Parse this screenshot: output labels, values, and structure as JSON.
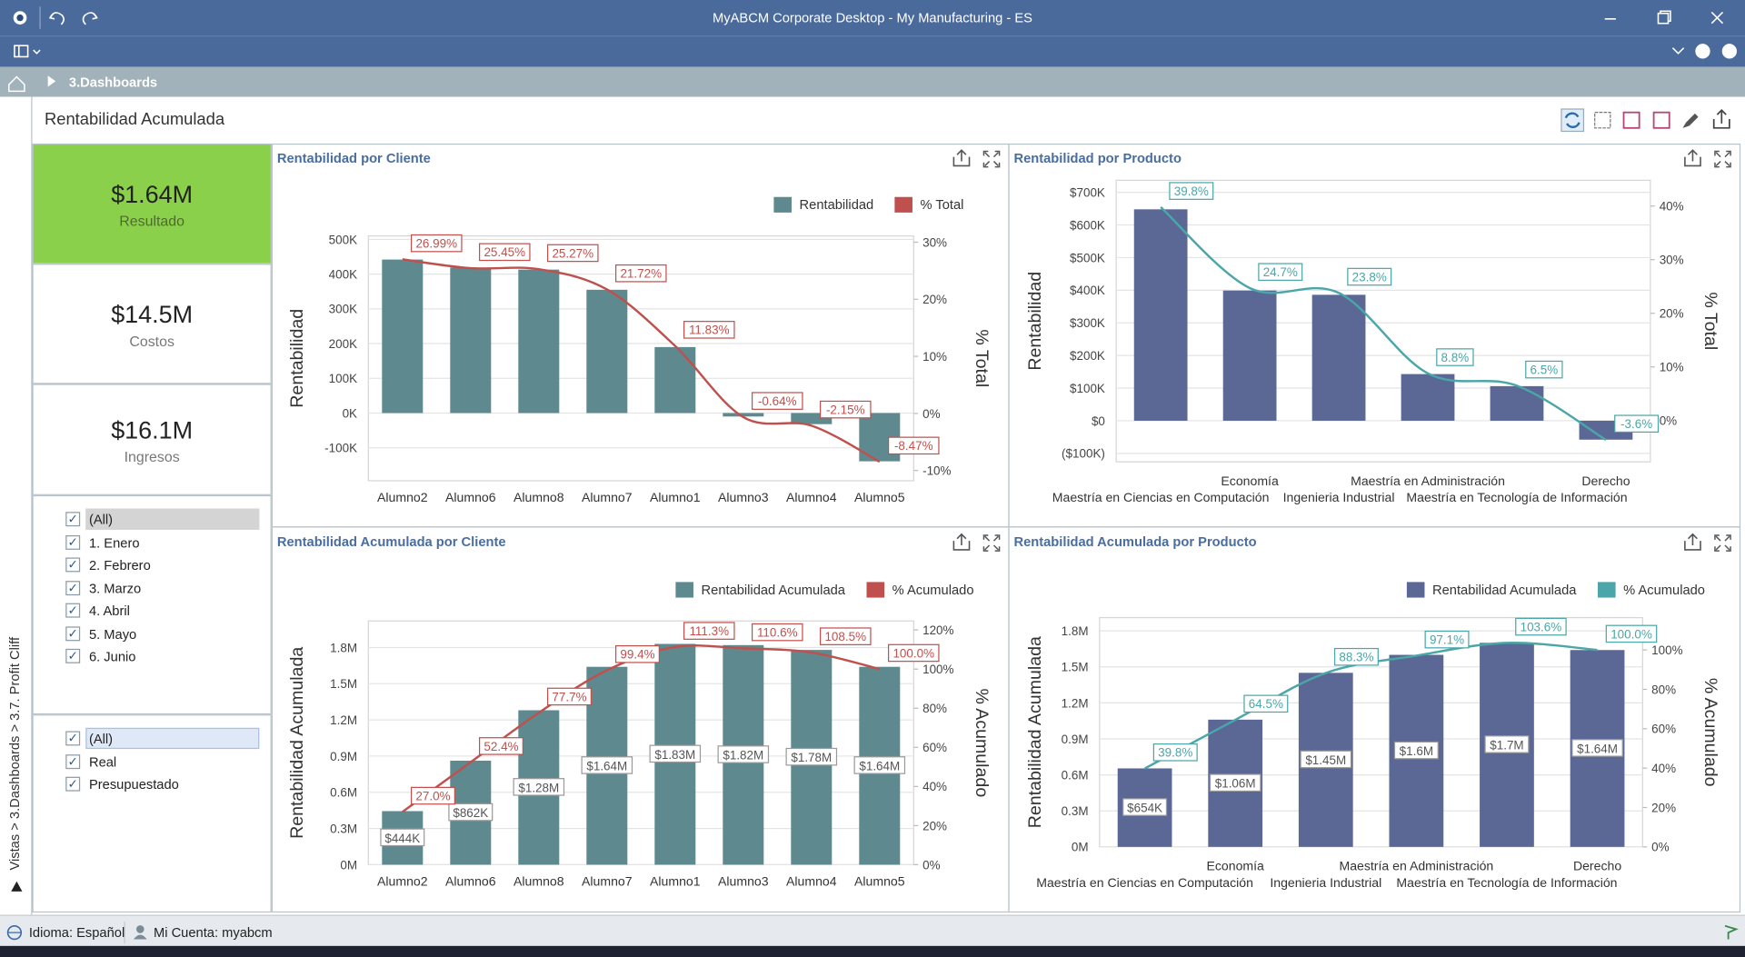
{
  "window": {
    "title": "MyABCM Corporate Desktop - My Manufacturing - ES"
  },
  "breadcrumb": "3.Dashboards",
  "side_path": "Vistas > 3.Dashboards > 3.7. Profit Cliff",
  "dashboard_title": "Rentabilidad Acumulada",
  "kpis": [
    {
      "value": "$1.64M",
      "label": "Resultado"
    },
    {
      "value": "$14.5M",
      "label": "Costos"
    },
    {
      "value": "$16.1M",
      "label": "Ingresos"
    }
  ],
  "filters": [
    [
      "(All)",
      "1. Enero",
      "2. Febrero",
      "3. Marzo",
      "4. Abril",
      "5. Mayo",
      "6. Junio"
    ],
    [
      "(All)",
      "Real",
      "Presupuestado"
    ]
  ],
  "status": {
    "language": "Idioma: Español",
    "account": "Mi Cuenta: myabcm"
  },
  "chart_data": [
    {
      "type": "bar",
      "title": "Rentabilidad por Cliente",
      "categories": [
        "Alumno2",
        "Alumno6",
        "Alumno8",
        "Alumno7",
        "Alumno1",
        "Alumno3",
        "Alumno4",
        "Alumno5"
      ],
      "series": [
        {
          "name": "Rentabilidad",
          "type": "bar",
          "color": "#5e8a8f",
          "values": [
            442000,
            419000,
            413000,
            355000,
            190000,
            -10000,
            -32000,
            -139000
          ]
        },
        {
          "name": "% Total",
          "type": "line",
          "axis": "y2",
          "color": "#c0504d",
          "values": [
            26.99,
            25.45,
            25.27,
            21.72,
            11.83,
            -0.64,
            -2.15,
            -8.47
          ],
          "value_labels": [
            "26.99%",
            "25.45%",
            "25.27%",
            "21.72%",
            "11.83%",
            "-0.64%",
            "-2.15%",
            "-8.47%"
          ]
        }
      ],
      "ylabel": "Rentabilidad",
      "y2label": "% Total",
      "ylim": [
        -195000,
        510000
      ],
      "yticks": [
        {
          "value": -100000,
          "label": "-100K"
        },
        {
          "value": 0,
          "label": "0K"
        },
        {
          "value": 100000,
          "label": "100K"
        },
        {
          "value": 200000,
          "label": "200K"
        },
        {
          "value": 300000,
          "label": "300K"
        },
        {
          "value": 400000,
          "label": "400K"
        },
        {
          "value": 500000,
          "label": "500K"
        }
      ],
      "y2lim": [
        -11.8,
        31.1
      ],
      "y2ticks": [
        {
          "value": -10,
          "label": "-10%"
        },
        {
          "value": 0,
          "label": "0%"
        },
        {
          "value": 10,
          "label": "10%"
        },
        {
          "value": 20,
          "label": "20%"
        },
        {
          "value": 30,
          "label": "30%"
        }
      ],
      "grid": true,
      "legend": "top-right"
    },
    {
      "type": "bar",
      "title": "Rentabilidad por Producto",
      "categories": [
        "Maestría en Ciencias en Computación",
        "Economía",
        "Ingenieria Industrial",
        "Maestría en Administración",
        "Maestría en Tecnología de Información",
        "Derecho"
      ],
      "series": [
        {
          "type": "bar",
          "color": "#5b6794",
          "values": [
            648000,
            399000,
            386000,
            143000,
            106000,
            -58000
          ]
        },
        {
          "type": "line",
          "axis": "y2",
          "color": "#4aa6a8",
          "values": [
            39.8,
            24.7,
            23.8,
            8.8,
            6.5,
            -3.6
          ],
          "value_labels": [
            "39.8%",
            "24.7%",
            "23.8%",
            "8.8%",
            "6.5%",
            "-3.6%"
          ]
        }
      ],
      "ylabel": "Rentabilidad",
      "y2label": "% Total",
      "ylim": [
        -126000,
        737000
      ],
      "yticks": [
        {
          "value": -100000,
          "label": "($100K)"
        },
        {
          "value": 0,
          "label": "$0"
        },
        {
          "value": 100000,
          "label": "$100K"
        },
        {
          "value": 200000,
          "label": "$200K"
        },
        {
          "value": 300000,
          "label": "$300K"
        },
        {
          "value": 400000,
          "label": "$400K"
        },
        {
          "value": 500000,
          "label": "$500K"
        },
        {
          "value": 600000,
          "label": "$600K"
        },
        {
          "value": 700000,
          "label": "$700K"
        }
      ],
      "y2lim": [
        -7.7,
        44.8
      ],
      "y2ticks": [
        {
          "value": 0,
          "label": "0%"
        },
        {
          "value": 10,
          "label": "10%"
        },
        {
          "value": 20,
          "label": "20%"
        },
        {
          "value": 30,
          "label": "30%"
        },
        {
          "value": 40,
          "label": "40%"
        }
      ],
      "grid": true
    },
    {
      "type": "bar",
      "title": "Rentabilidad Acumulada por Cliente",
      "categories": [
        "Alumno2",
        "Alumno6",
        "Alumno8",
        "Alumno7",
        "Alumno1",
        "Alumno3",
        "Alumno4",
        "Alumno5"
      ],
      "series": [
        {
          "name": "Rentabilidad Acumulada",
          "type": "bar",
          "color": "#5e8a8f",
          "values": [
            444000,
            862000,
            1280000,
            1640000,
            1830000,
            1820000,
            1780000,
            1640000
          ],
          "value_labels": [
            "$444K",
            "$862K",
            "$1.28M",
            "$1.64M",
            "$1.83M",
            "$1.82M",
            "$1.78M",
            "$1.64M"
          ]
        },
        {
          "name": "% Acumulado",
          "type": "line",
          "axis": "y2",
          "color": "#c0504d",
          "values": [
            27.0,
            52.4,
            77.7,
            99.4,
            111.3,
            110.6,
            108.5,
            100.0
          ],
          "value_labels": [
            "27.0%",
            "52.4%",
            "77.7%",
            "99.4%",
            "111.3%",
            "110.6%",
            "108.5%",
            "100.0%"
          ]
        }
      ],
      "ylabel": "Rentabilidad Acumulada",
      "y2label": "% Acumulado",
      "ylim": [
        0,
        2020000
      ],
      "yticks": [
        {
          "value": 0,
          "label": "0M"
        },
        {
          "value": 300000,
          "label": "0.3M"
        },
        {
          "value": 600000,
          "label": "0.6M"
        },
        {
          "value": 900000,
          "label": "0.9M"
        },
        {
          "value": 1200000,
          "label": "1.2M"
        },
        {
          "value": 1500000,
          "label": "1.5M"
        },
        {
          "value": 1800000,
          "label": "1.8M"
        }
      ],
      "y2lim": [
        0,
        124.6
      ],
      "y2ticks": [
        {
          "value": 0,
          "label": "0%"
        },
        {
          "value": 20,
          "label": "20%"
        },
        {
          "value": 40,
          "label": "40%"
        },
        {
          "value": 60,
          "label": "60%"
        },
        {
          "value": 80,
          "label": "80%"
        },
        {
          "value": 100,
          "label": "100%"
        },
        {
          "value": 120,
          "label": "120%"
        }
      ],
      "grid": true,
      "legend": "top-right"
    },
    {
      "type": "bar",
      "title": "Rentabilidad Acumulada por Producto",
      "categories": [
        "Maestría en Ciencias en Computación",
        "Economía",
        "Ingenieria Industrial",
        "Maestría en Administración",
        "Maestría en Tecnología de Información",
        "Derecho"
      ],
      "series": [
        {
          "name": "Rentabilidad Acumulada",
          "type": "bar",
          "color": "#5b6794",
          "values": [
            654000,
            1060000,
            1450000,
            1600000,
            1700000,
            1640000
          ],
          "value_labels": [
            "$654K",
            "$1.06M",
            "$1.45M",
            "$1.6M",
            "$1.7M",
            "$1.64M"
          ]
        },
        {
          "name": "% Acumulado",
          "type": "line",
          "axis": "y2",
          "color": "#4aa6a8",
          "values": [
            39.8,
            64.5,
            88.3,
            97.1,
            103.6,
            100.0
          ],
          "value_labels": [
            "39.8%",
            "64.5%",
            "88.3%",
            "97.1%",
            "103.6%",
            "100.0%"
          ]
        }
      ],
      "ylabel": "Rentabilidad Acumulada",
      "y2label": "% Acumulado",
      "ylim": [
        0,
        1910000
      ],
      "yticks": [
        {
          "value": 0,
          "label": "0M"
        },
        {
          "value": 300000,
          "label": "0.3M"
        },
        {
          "value": 600000,
          "label": "0.6M"
        },
        {
          "value": 900000,
          "label": "0.9M"
        },
        {
          "value": 1200000,
          "label": "1.2M"
        },
        {
          "value": 1500000,
          "label": "1.5M"
        },
        {
          "value": 1800000,
          "label": "1.8M"
        }
      ],
      "y2lim": [
        0,
        116.4
      ],
      "y2ticks": [
        {
          "value": 0,
          "label": "0%"
        },
        {
          "value": 20,
          "label": "20%"
        },
        {
          "value": 40,
          "label": "40%"
        },
        {
          "value": 60,
          "label": "60%"
        },
        {
          "value": 80,
          "label": "80%"
        },
        {
          "value": 100,
          "label": "100%"
        }
      ],
      "grid": true,
      "legend": "top-right"
    }
  ]
}
